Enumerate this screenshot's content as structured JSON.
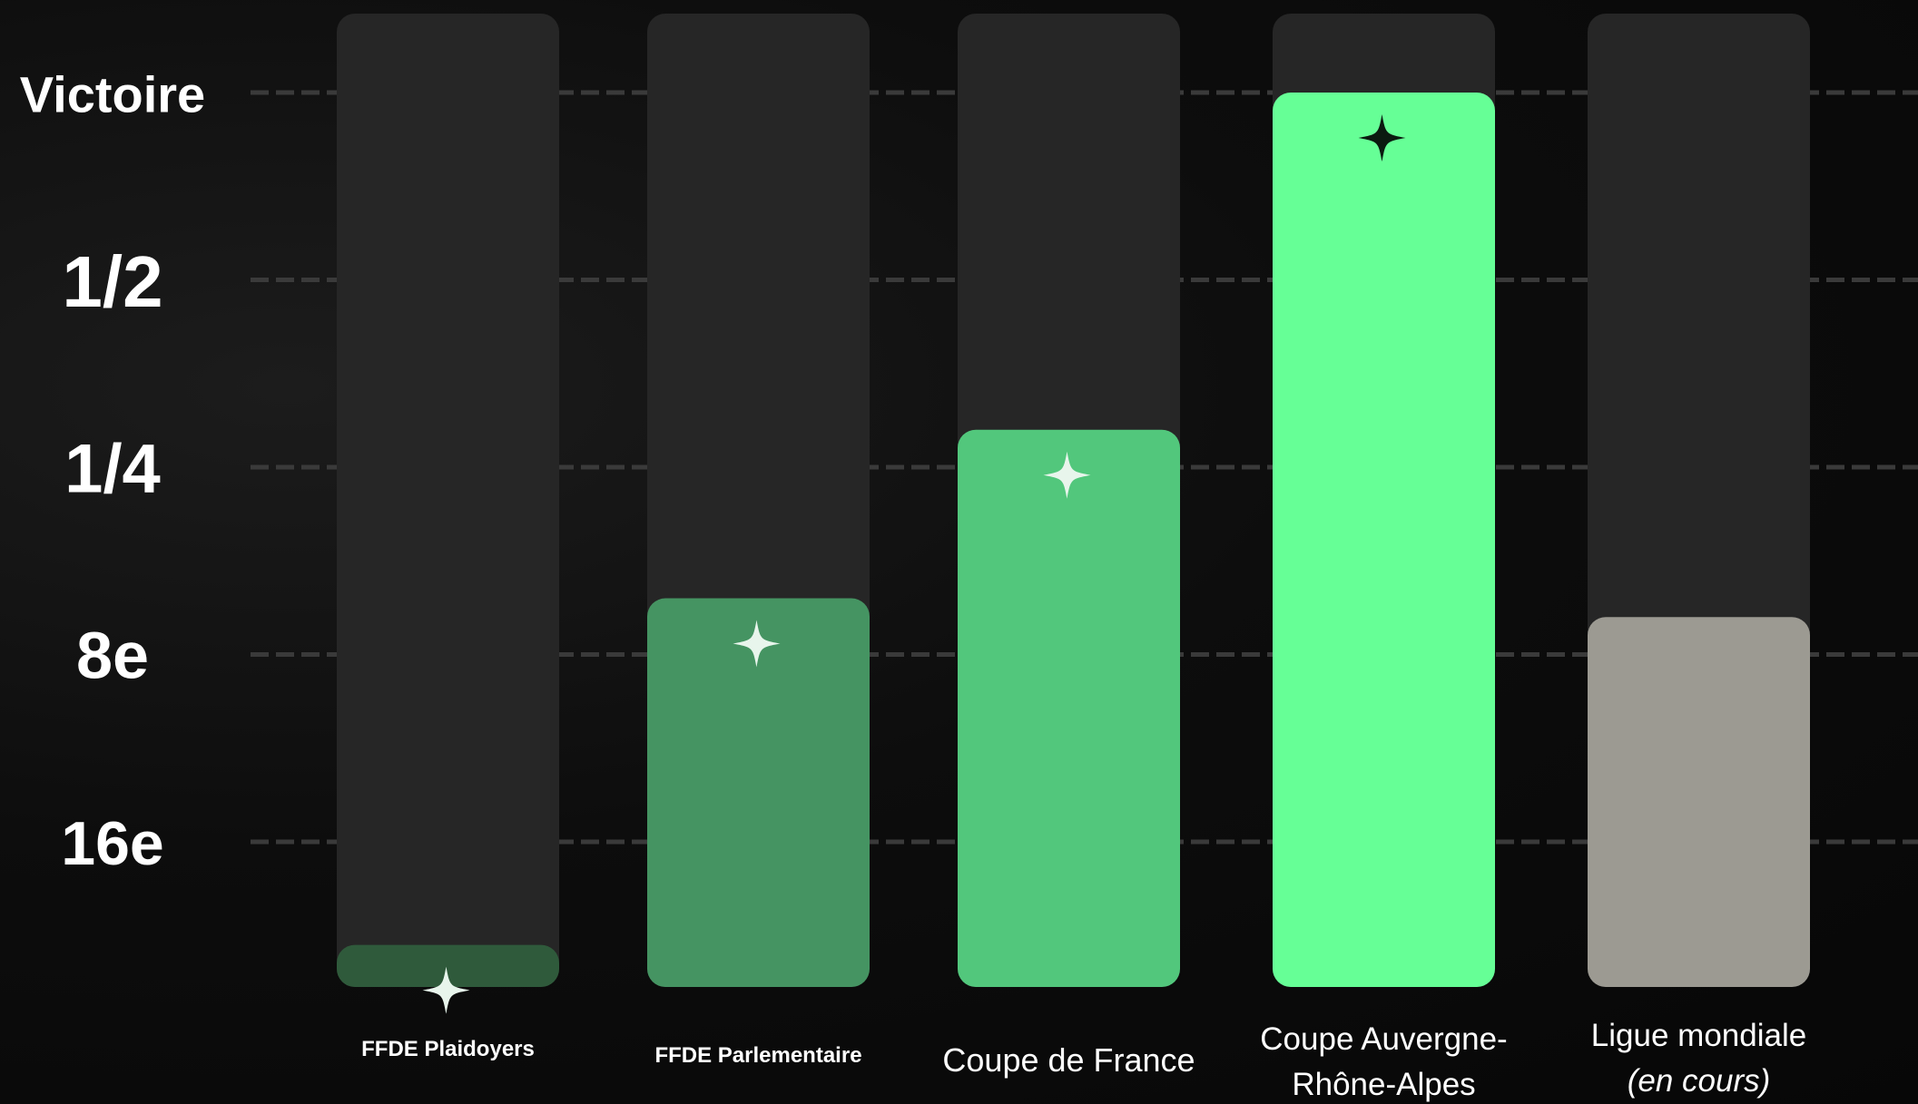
{
  "chart_data": {
    "type": "bar",
    "title": "",
    "xlabel": "",
    "ylabel": "",
    "levels": [
      "16e",
      "8e",
      "1/4",
      "1/2",
      "Victoire"
    ],
    "ylim": [
      0,
      5
    ],
    "categories": [
      {
        "lines": [
          "FFDE Plaidoyers"
        ],
        "italic_lines": []
      },
      {
        "lines": [
          "FFDE Parlementaire"
        ],
        "italic_lines": []
      },
      {
        "lines": [
          "Coupe de France"
        ],
        "italic_lines": []
      },
      {
        "lines": [
          "Coupe Auvergne-",
          "Rhône-Alpes"
        ],
        "italic_lines": []
      },
      {
        "lines": [
          "Ligue mondiale",
          "(en cours)"
        ],
        "italic_lines": [
          1
        ]
      }
    ],
    "values": [
      0.45,
      2.3,
      3.2,
      5.0,
      2.2
    ],
    "fill_colors": [
      "#2f5a3b",
      "#459462",
      "#52c77c",
      "#66ff96",
      "#9c9a92"
    ],
    "star_colors": [
      "#e8f5ec",
      "#e8f5ec",
      "#e8f5ec",
      "#0b1a10",
      null
    ],
    "track_color": "#262626",
    "grid_color": "#3a3a3a",
    "grid": true,
    "legend": "none"
  }
}
